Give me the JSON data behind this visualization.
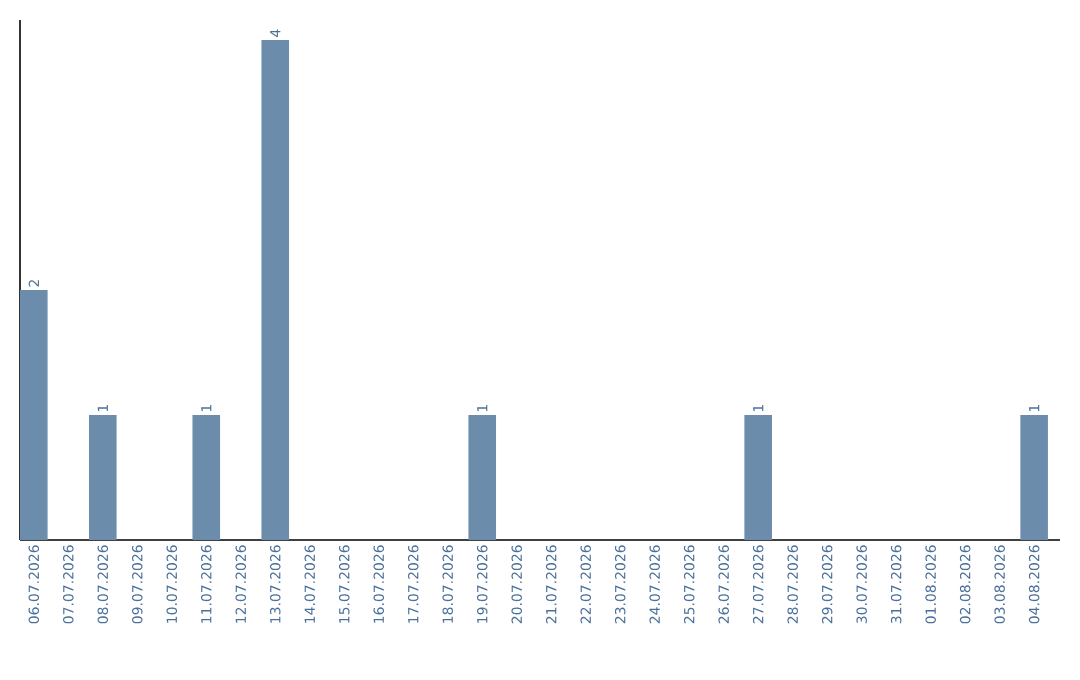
{
  "chart_data": {
    "type": "bar",
    "categories": [
      "06.07.2026",
      "07.07.2026",
      "08.07.2026",
      "09.07.2026",
      "10.07.2026",
      "11.07.2026",
      "12.07.2026",
      "13.07.2026",
      "14.07.2026",
      "15.07.2026",
      "16.07.2026",
      "17.07.2026",
      "18.07.2026",
      "19.07.2026",
      "20.07.2026",
      "21.07.2026",
      "22.07.2026",
      "23.07.2026",
      "24.07.2026",
      "25.07.2026",
      "26.07.2026",
      "27.07.2026",
      "28.07.2026",
      "29.07.2026",
      "30.07.2026",
      "31.07.2026",
      "01.08.2026",
      "02.08.2026",
      "03.08.2026",
      "04.08.2026"
    ],
    "values": [
      2,
      0,
      1,
      0,
      0,
      1,
      0,
      4,
      0,
      0,
      0,
      0,
      0,
      1,
      0,
      0,
      0,
      0,
      0,
      0,
      0,
      1,
      0,
      0,
      0,
      0,
      0,
      0,
      0,
      1
    ],
    "value_labels": [
      "2",
      null,
      "1",
      null,
      null,
      "1",
      null,
      "4",
      null,
      null,
      null,
      null,
      null,
      "1",
      null,
      null,
      null,
      null,
      null,
      null,
      null,
      "1",
      null,
      null,
      null,
      null,
      null,
      null,
      null,
      "1"
    ],
    "color": "#6b8cab",
    "ylim": [
      0,
      4.16
    ],
    "tick_labels": "x"
  }
}
